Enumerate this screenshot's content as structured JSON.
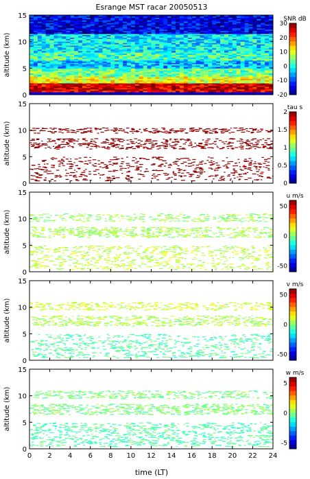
{
  "figure": {
    "title": "Esrange MST racar 20050513",
    "xlabel": "time (LT)"
  },
  "colors": {
    "background_panel1": "#1a2fd0",
    "scatter_dark_red": "#7a0f0f",
    "scatter_yellow_green": "#cdea6a",
    "scatter_green": "#8fe49a",
    "scatter_cyan": "#5be0d0"
  },
  "chart_data": [
    {
      "type": "heatmap",
      "panel": "snr",
      "ylabel": "altitude (km)",
      "colorbar_label": "SNR dB",
      "colorbar_ticks": [
        "30",
        "20",
        "10",
        "0",
        "-10",
        "-20"
      ],
      "clim": [
        -20,
        30
      ],
      "xlim": [
        0,
        24
      ],
      "ylim": [
        0,
        15
      ],
      "xticks": [
        "0",
        "2",
        "4",
        "6",
        "8",
        "10",
        "12",
        "14",
        "16",
        "18",
        "20",
        "22",
        "24"
      ],
      "yticks": [
        "0",
        "5",
        "10",
        "15"
      ],
      "layers": [
        {
          "alt_min": 0.5,
          "alt_max": 2.2,
          "level": 26
        },
        {
          "alt_min": 2.2,
          "alt_max": 3.5,
          "level": 10
        },
        {
          "alt_min": 3.5,
          "alt_max": 5.0,
          "level": 4
        },
        {
          "alt_min": 5.0,
          "alt_max": 6.5,
          "level": -4
        },
        {
          "alt_min": 6.5,
          "alt_max": 8.0,
          "level": 2
        },
        {
          "alt_min": 8.0,
          "alt_max": 11.5,
          "level": -2
        },
        {
          "alt_min": 11.5,
          "alt_max": 15.0,
          "level": -15
        }
      ]
    },
    {
      "type": "scatter",
      "panel": "tau",
      "ylabel": "altitude (km)",
      "colorbar_label": "tau s",
      "colorbar_ticks": [
        "2",
        "1.5",
        "1",
        "0.5",
        "0"
      ],
      "clim": [
        0,
        2
      ],
      "xlim": [
        0,
        24
      ],
      "ylim": [
        0,
        15
      ],
      "xticks": [
        "0",
        "2",
        "4",
        "6",
        "8",
        "10",
        "12",
        "14",
        "16",
        "18",
        "20",
        "22",
        "24"
      ],
      "yticks": [
        "0",
        "5",
        "10",
        "15"
      ],
      "layers": [
        {
          "alt_min": 0.5,
          "alt_max": 5.0,
          "level": 2,
          "density": 0.55
        },
        {
          "alt_min": 6.5,
          "alt_max": 8.5,
          "level": 2,
          "density": 0.45
        },
        {
          "alt_min": 9.5,
          "alt_max": 10.5,
          "level": 2,
          "density": 0.25
        }
      ]
    },
    {
      "type": "scatter",
      "panel": "u",
      "ylabel": "altitude (km)",
      "colorbar_label": "u m/s",
      "colorbar_ticks": [
        "50",
        "0",
        "-50"
      ],
      "clim": [
        -60,
        60
      ],
      "xlim": [
        0,
        24
      ],
      "ylim": [
        0,
        15
      ],
      "xticks": [
        "0",
        "2",
        "4",
        "6",
        "8",
        "10",
        "12",
        "14",
        "16",
        "18",
        "20",
        "22",
        "24"
      ],
      "yticks": [
        "0",
        "5",
        "10",
        "15"
      ],
      "layers": [
        {
          "alt_min": 0.5,
          "alt_max": 5.0,
          "level": 8,
          "density": 0.7
        },
        {
          "alt_min": 6.5,
          "alt_max": 8.5,
          "level": 5,
          "density": 0.55
        },
        {
          "alt_min": 9.5,
          "alt_max": 11.0,
          "level": 3,
          "density": 0.3
        }
      ]
    },
    {
      "type": "scatter",
      "panel": "v",
      "ylabel": "altitude (km)",
      "colorbar_label": "v m/s",
      "colorbar_ticks": [
        "50",
        "0",
        "-50"
      ],
      "clim": [
        -60,
        60
      ],
      "xlim": [
        0,
        24
      ],
      "ylim": [
        0,
        15
      ],
      "xticks": [
        "0",
        "2",
        "4",
        "6",
        "8",
        "10",
        "12",
        "14",
        "16",
        "18",
        "20",
        "22",
        "24"
      ],
      "yticks": [
        "0",
        "5",
        "10",
        "15"
      ],
      "layers": [
        {
          "alt_min": 0.5,
          "alt_max": 5.0,
          "level": -5,
          "density": 0.7
        },
        {
          "alt_min": 6.5,
          "alt_max": 8.5,
          "level": 6,
          "density": 0.5
        },
        {
          "alt_min": 9.5,
          "alt_max": 11.0,
          "level": 10,
          "density": 0.3
        }
      ]
    },
    {
      "type": "scatter",
      "panel": "w",
      "ylabel": "altitude (km)",
      "colorbar_label": "w m/s",
      "colorbar_ticks": [
        "5",
        "0",
        "-5"
      ],
      "clim": [
        -6,
        6
      ],
      "xlim": [
        0,
        24
      ],
      "ylim": [
        0,
        15
      ],
      "xticks": [
        "0",
        "2",
        "4",
        "6",
        "8",
        "10",
        "12",
        "14",
        "16",
        "18",
        "20",
        "22",
        "24"
      ],
      "yticks": [
        "0",
        "5",
        "10",
        "15"
      ],
      "layers": [
        {
          "alt_min": 0.5,
          "alt_max": 5.0,
          "level": -0.5,
          "density": 0.85
        },
        {
          "alt_min": 6.5,
          "alt_max": 8.5,
          "level": 0,
          "density": 0.6
        },
        {
          "alt_min": 9.5,
          "alt_max": 11.0,
          "level": 0,
          "density": 0.35
        }
      ]
    }
  ]
}
